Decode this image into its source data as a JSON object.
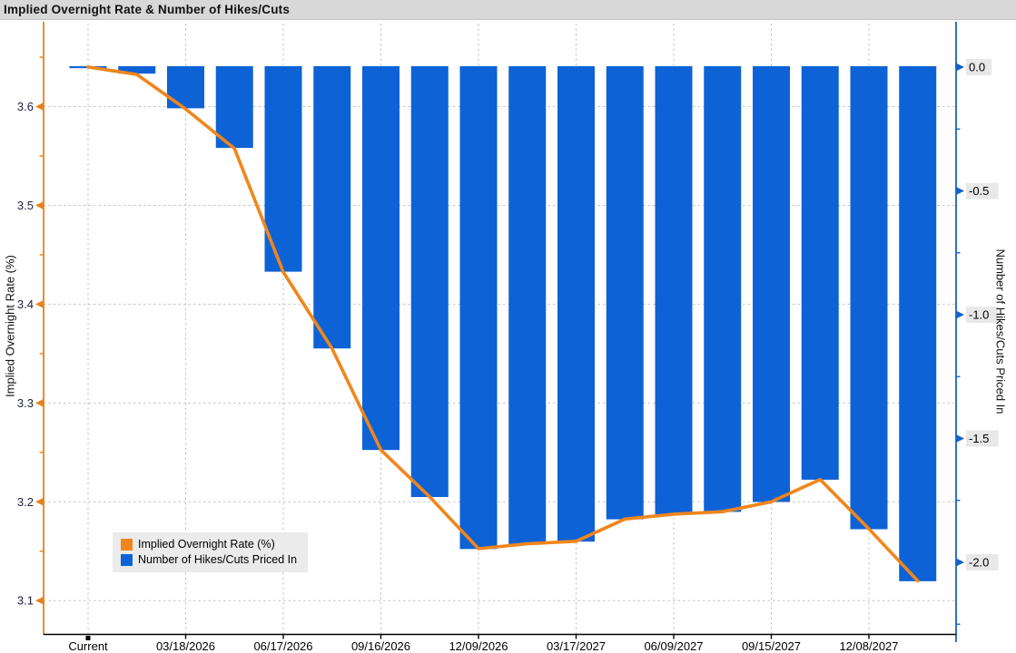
{
  "title": "Implied Overnight Rate & Number of Hikes/Cuts",
  "legend": {
    "items": [
      {
        "label": "Implied Overnight Rate (%)",
        "color": "#F0861B"
      },
      {
        "label": "Number of Hikes/Cuts Priced In",
        "color": "#0D62D6"
      }
    ]
  },
  "colors": {
    "bar_blue": "#0D62D6",
    "line_orange": "#F0861B",
    "left_axis_orange": "#E8821E",
    "right_axis_blue": "#1663C7",
    "gridline": "#c4c4c4",
    "title_bar_bg": "#d8d8d8",
    "right_label_bg": "#e8e8e8",
    "left_tick_text": "#1d1d3c",
    "tick_text": "#000000"
  },
  "chart_data": {
    "type": "combo",
    "title": "Implied Overnight Rate & Number of Hikes/Cuts",
    "categories": [
      "Current",
      "",
      "03/18/2026",
      "",
      "06/17/2026",
      "",
      "09/16/2026",
      "",
      "12/09/2026",
      "",
      "03/17/2027",
      "",
      "06/09/2027",
      "",
      "09/15/2027",
      "",
      "12/08/2027",
      ""
    ],
    "x_tick_indices": [
      0,
      2,
      4,
      6,
      8,
      10,
      12,
      14,
      16
    ],
    "x_tick_labels": [
      "Current",
      "03/18/2026",
      "06/17/2026",
      "09/16/2026",
      "12/09/2026",
      "03/17/2027",
      "06/09/2027",
      "09/15/2027",
      "12/08/2027"
    ],
    "series": [
      {
        "name": "Implied Overnight Rate (%)",
        "type": "line",
        "axis": "left",
        "color": "#F0861B",
        "values": [
          3.64,
          3.6325,
          3.5975,
          3.5575,
          3.4325,
          3.355,
          3.2525,
          3.205,
          3.1525,
          3.1575,
          3.16,
          3.1825,
          3.1875,
          3.19,
          3.2,
          3.2225,
          3.1725,
          3.12
        ]
      },
      {
        "name": "Number of Hikes/Cuts Priced In",
        "type": "bar",
        "axis": "right",
        "color": "#0D62D6",
        "values": [
          0.0,
          -0.03,
          -0.17,
          -0.33,
          -0.83,
          -1.14,
          -1.55,
          -1.74,
          -1.95,
          -1.93,
          -1.92,
          -1.83,
          -1.81,
          -1.8,
          -1.76,
          -1.67,
          -1.87,
          -2.08
        ]
      }
    ],
    "left_axis": {
      "label": "Implied Overnight Rate (%)",
      "ticks": [
        "3.6",
        "3.5",
        "3.4",
        "3.3",
        "3.2",
        "3.1"
      ],
      "tick_values": [
        3.6,
        3.5,
        3.4,
        3.3,
        3.2,
        3.1
      ],
      "minor_ticks": [
        3.65,
        3.55,
        3.45,
        3.35,
        3.25,
        3.15
      ],
      "range": [
        3.0653,
        3.684
      ]
    },
    "right_axis": {
      "label": "Number of Hikes/Cuts Priced In",
      "ticks": [
        "0.0",
        "-0.5",
        "-1.0",
        "-1.5",
        "-2.0"
      ],
      "tick_values": [
        0.0,
        -0.5,
        -1.0,
        -1.5,
        -2.0
      ],
      "minor_ticks": [
        -0.25,
        -0.75,
        -1.25,
        -1.75,
        -2.25
      ],
      "range": [
        -2.293,
        0.1758
      ]
    },
    "grid": true,
    "legend_position": "inside-bottom-left"
  }
}
